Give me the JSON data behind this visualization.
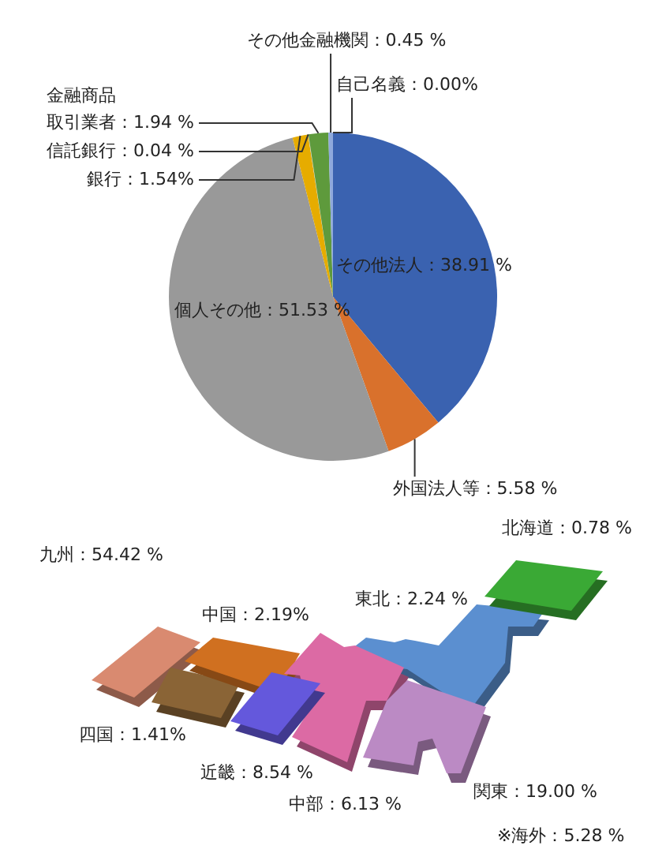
{
  "chart_data": [
    {
      "type": "pie",
      "categories": [
        "その他法人",
        "外国法人等",
        "個人その他",
        "銀行",
        "信託銀行",
        "金融商品取引業者",
        "その他金融機関",
        "自己名義"
      ],
      "values": [
        38.91,
        5.58,
        51.53,
        1.54,
        0.04,
        1.94,
        0.45,
        0.0
      ],
      "value_labels": [
        "：38.91 %",
        "：5.58 %",
        "：51.53 %",
        "：1.54%",
        "：0.04 %",
        "：1.94 %",
        "：0.45 %",
        "：0.00%"
      ],
      "colors": [
        "#3a62b0",
        "#d9712c",
        "#999999",
        "#e6ac00",
        "#c8c8c8",
        "#5e9a3c",
        "#8fa9dc",
        "#4a7ac0"
      ]
    },
    {
      "type": "other",
      "categories": [
        "北海道",
        "東北",
        "関東",
        "中部",
        "近畿",
        "中国",
        "四国",
        "九州"
      ],
      "values": [
        0.78,
        2.24,
        19.0,
        6.13,
        8.54,
        2.19,
        1.41,
        54.42
      ],
      "value_labels": [
        "：0.78 %",
        "：2.24 %",
        "：19.00 %",
        "：6.13 %",
        "：8.54 %",
        "：2.19%",
        "：1.41%",
        "：54.42 %"
      ],
      "colors": [
        "#3aa935",
        "#5b8fd0",
        "#bb8ac4",
        "#dc6aa4",
        "#6458dc",
        "#d07020",
        "#8a6436",
        "#d98a70"
      ],
      "data_labels": true,
      "annotations": [
        "※海外：5.28 %"
      ]
    }
  ]
}
